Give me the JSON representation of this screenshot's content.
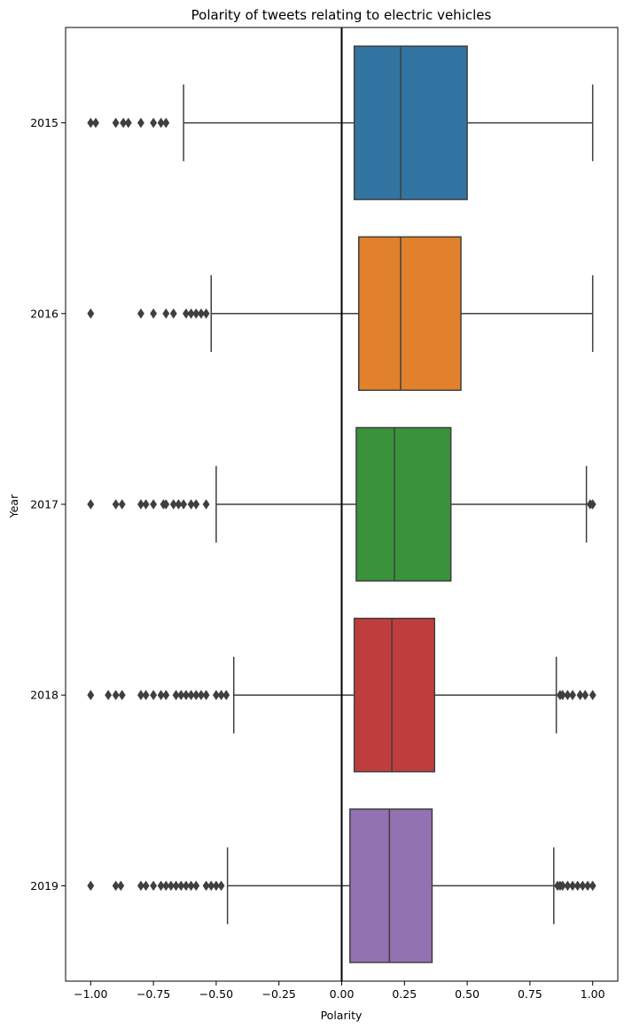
{
  "chart_data": {
    "type": "box",
    "orientation": "horizontal",
    "title": "Polarity of tweets relating to electric vehicles",
    "xlabel": "Polarity",
    "ylabel": "Year",
    "xlim": [
      -1.1,
      1.1
    ],
    "xticks": [
      -1.0,
      -0.75,
      -0.5,
      -0.25,
      0.0,
      0.25,
      0.5,
      0.75,
      1.0
    ],
    "xtick_labels": [
      "−1.00",
      "−0.75",
      "−0.50",
      "−0.25",
      "0.00",
      "0.25",
      "0.50",
      "0.75",
      "1.00"
    ],
    "reference_line": {
      "x": 0.0,
      "color": "#000000"
    },
    "grid": false,
    "categories": [
      "2015",
      "2016",
      "2017",
      "2018",
      "2019"
    ],
    "series": [
      {
        "category": "2015",
        "color": "#3274a1",
        "whisker_low": -0.63,
        "q1": 0.05,
        "median": 0.235,
        "q3": 0.5,
        "whisker_high": 1.0,
        "outliers": [
          -1.0,
          -0.98,
          -0.9,
          -0.87,
          -0.85,
          -0.8,
          -0.75,
          -0.72,
          -0.7
        ]
      },
      {
        "category": "2016",
        "color": "#e1812c",
        "whisker_low": -0.52,
        "q1": 0.068,
        "median": 0.235,
        "q3": 0.475,
        "whisker_high": 1.0,
        "outliers": [
          -1.0,
          -0.8,
          -0.75,
          -0.7,
          -0.67,
          -0.62,
          -0.6,
          -0.58,
          -0.56,
          -0.54
        ]
      },
      {
        "category": "2017",
        "color": "#3a923a",
        "whisker_low": -0.5,
        "q1": 0.058,
        "median": 0.21,
        "q3": 0.435,
        "whisker_high": 0.975,
        "outliers": [
          -1.0,
          -0.9,
          -0.875,
          -0.8,
          -0.78,
          -0.75,
          -0.71,
          -0.7,
          -0.67,
          -0.65,
          -0.63,
          -0.6,
          -0.58,
          -0.54,
          0.99,
          1.0
        ]
      },
      {
        "category": "2018",
        "color": "#c03d3e",
        "whisker_low": -0.43,
        "q1": 0.05,
        "median": 0.2,
        "q3": 0.37,
        "whisker_high": 0.855,
        "outliers": [
          -1.0,
          -0.93,
          -0.9,
          -0.875,
          -0.8,
          -0.78,
          -0.75,
          -0.72,
          -0.7,
          -0.66,
          -0.64,
          -0.62,
          -0.6,
          -0.58,
          -0.56,
          -0.54,
          -0.5,
          -0.48,
          -0.46,
          0.87,
          0.88,
          0.9,
          0.92,
          0.95,
          0.97,
          1.0
        ]
      },
      {
        "category": "2019",
        "color": "#9372b2",
        "whisker_low": -0.455,
        "q1": 0.033,
        "median": 0.19,
        "q3": 0.36,
        "whisker_high": 0.845,
        "outliers": [
          -1.0,
          -0.9,
          -0.88,
          -0.8,
          -0.78,
          -0.75,
          -0.72,
          -0.7,
          -0.68,
          -0.66,
          -0.64,
          -0.62,
          -0.6,
          -0.58,
          -0.54,
          -0.52,
          -0.5,
          -0.48,
          0.86,
          0.87,
          0.88,
          0.9,
          0.92,
          0.94,
          0.96,
          0.98,
          1.0
        ]
      }
    ]
  }
}
